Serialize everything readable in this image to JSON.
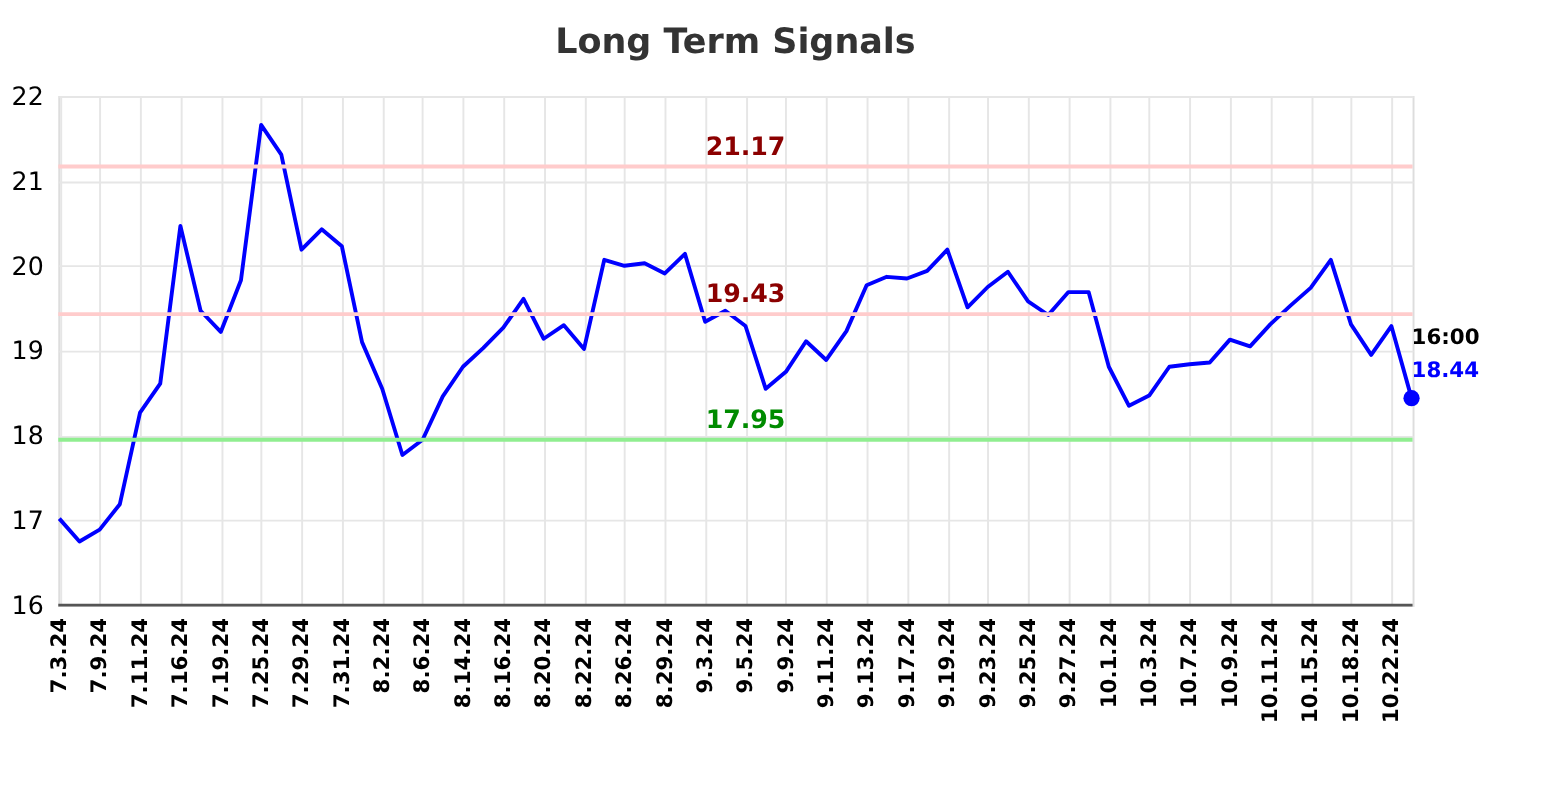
{
  "chart_data": {
    "type": "line",
    "title": "Long Term Signals",
    "categories": [
      "7.3.24",
      null,
      "7.9.24",
      null,
      "7.11.24",
      null,
      "7.16.24",
      null,
      "7.19.24",
      null,
      "7.25.24",
      null,
      "7.29.24",
      null,
      "7.31.24",
      null,
      "8.2.24",
      null,
      "8.6.24",
      null,
      "8.14.24",
      null,
      "8.16.24",
      null,
      "8.20.24",
      null,
      "8.22.24",
      null,
      "8.26.24",
      null,
      "8.29.24",
      null,
      "9.3.24",
      null,
      "9.5.24",
      null,
      "9.9.24",
      null,
      "9.11.24",
      null,
      "9.13.24",
      null,
      "9.17.24",
      null,
      "9.19.24",
      null,
      "9.23.24",
      null,
      "9.25.24",
      null,
      "9.27.24",
      null,
      "10.1.24",
      null,
      "10.3.24",
      null,
      "10.7.24",
      null,
      "10.9.24",
      null,
      "10.11.24",
      null,
      "10.15.24",
      null,
      "10.18.24",
      null,
      "10.22.24",
      null
    ],
    "series": [
      {
        "color": "#0000ff",
        "values": [
          17.02,
          16.75,
          16.89,
          17.19,
          18.27,
          18.61,
          20.47,
          19.47,
          19.22,
          19.83,
          21.66,
          21.31,
          20.19,
          20.43,
          20.23,
          19.1,
          18.55,
          17.77,
          17.95,
          18.46,
          18.81,
          19.03,
          19.27,
          19.61,
          19.14,
          19.3,
          19.02,
          20.07,
          20.0,
          20.03,
          19.91,
          20.14,
          19.34,
          19.47,
          19.29,
          18.55,
          18.75,
          19.11,
          18.89,
          19.23,
          19.77,
          19.87,
          19.85,
          19.94,
          20.19,
          19.51,
          19.75,
          19.93,
          19.58,
          19.42,
          19.69,
          19.69,
          18.81,
          18.35,
          18.47,
          18.81,
          18.84,
          18.86,
          19.13,
          19.05,
          19.31,
          19.53,
          19.74,
          20.07,
          19.31,
          18.95,
          19.29,
          18.44
        ]
      },
      {
        "type": "scatter",
        "color": "#0000ff",
        "values": [
          null,
          null,
          null,
          null,
          null,
          null,
          null,
          null,
          null,
          null,
          null,
          null,
          null,
          null,
          null,
          null,
          null,
          null,
          null,
          null,
          null,
          null,
          null,
          null,
          null,
          null,
          null,
          null,
          null,
          null,
          null,
          null,
          null,
          null,
          null,
          null,
          null,
          null,
          null,
          null,
          null,
          null,
          null,
          null,
          null,
          null,
          null,
          null,
          null,
          null,
          null,
          null,
          null,
          null,
          null,
          null,
          null,
          null,
          null,
          null,
          null,
          null,
          null,
          null,
          null,
          null,
          null,
          18.44
        ]
      }
    ],
    "ylim": [
      16,
      22
    ],
    "yticks": [
      16,
      17,
      18,
      19,
      20,
      21,
      22
    ],
    "grid": true,
    "ref_lines": [
      {
        "axis": "y",
        "value": 21.17,
        "label": "21.17",
        "color": "#ffcccc"
      },
      {
        "axis": "y",
        "value": 19.43,
        "label": "19.43",
        "color": "#ffcccc"
      },
      {
        "axis": "y",
        "value": 17.95,
        "label": "17.95",
        "color": "#90ee90"
      }
    ],
    "annotations": [
      "16:00",
      "18.44"
    ]
  }
}
